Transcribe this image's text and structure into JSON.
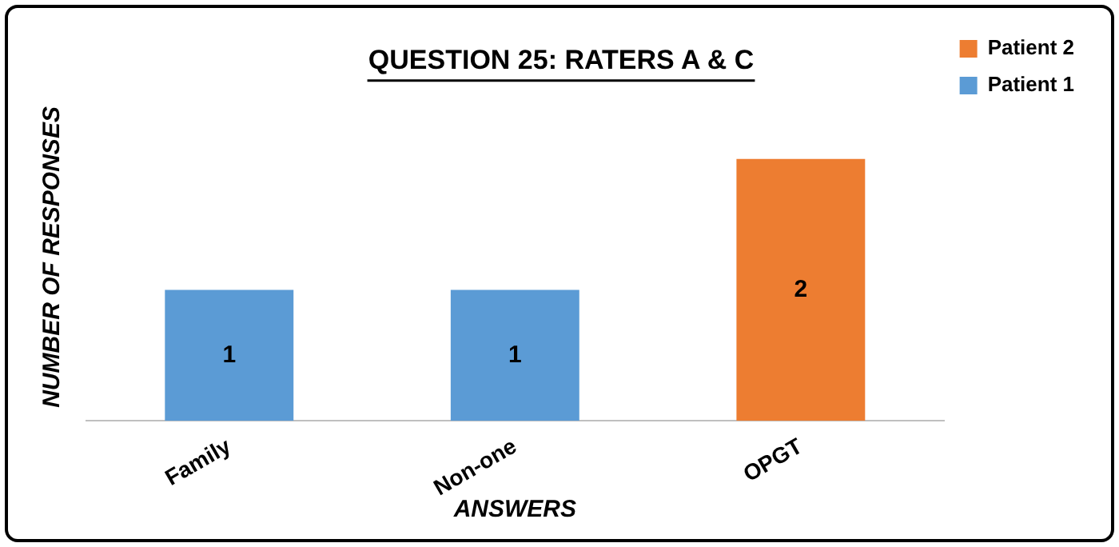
{
  "chart_data": {
    "type": "bar",
    "title": "QUESTION 25: RATERS A & C",
    "xlabel": "ANSWERS",
    "ylabel": "NUMBER OF RESPONSES",
    "categories": [
      "Family",
      "Non-one",
      "OPGT"
    ],
    "series": [
      {
        "name": "Patient 1",
        "color": "#5b9bd5",
        "values": [
          1,
          1,
          null
        ]
      },
      {
        "name": "Patient 2",
        "color": "#ed7d31",
        "values": [
          null,
          null,
          2
        ]
      }
    ],
    "data_labels": true,
    "legend": "top right",
    "grid": false,
    "tick_labels": "x"
  }
}
